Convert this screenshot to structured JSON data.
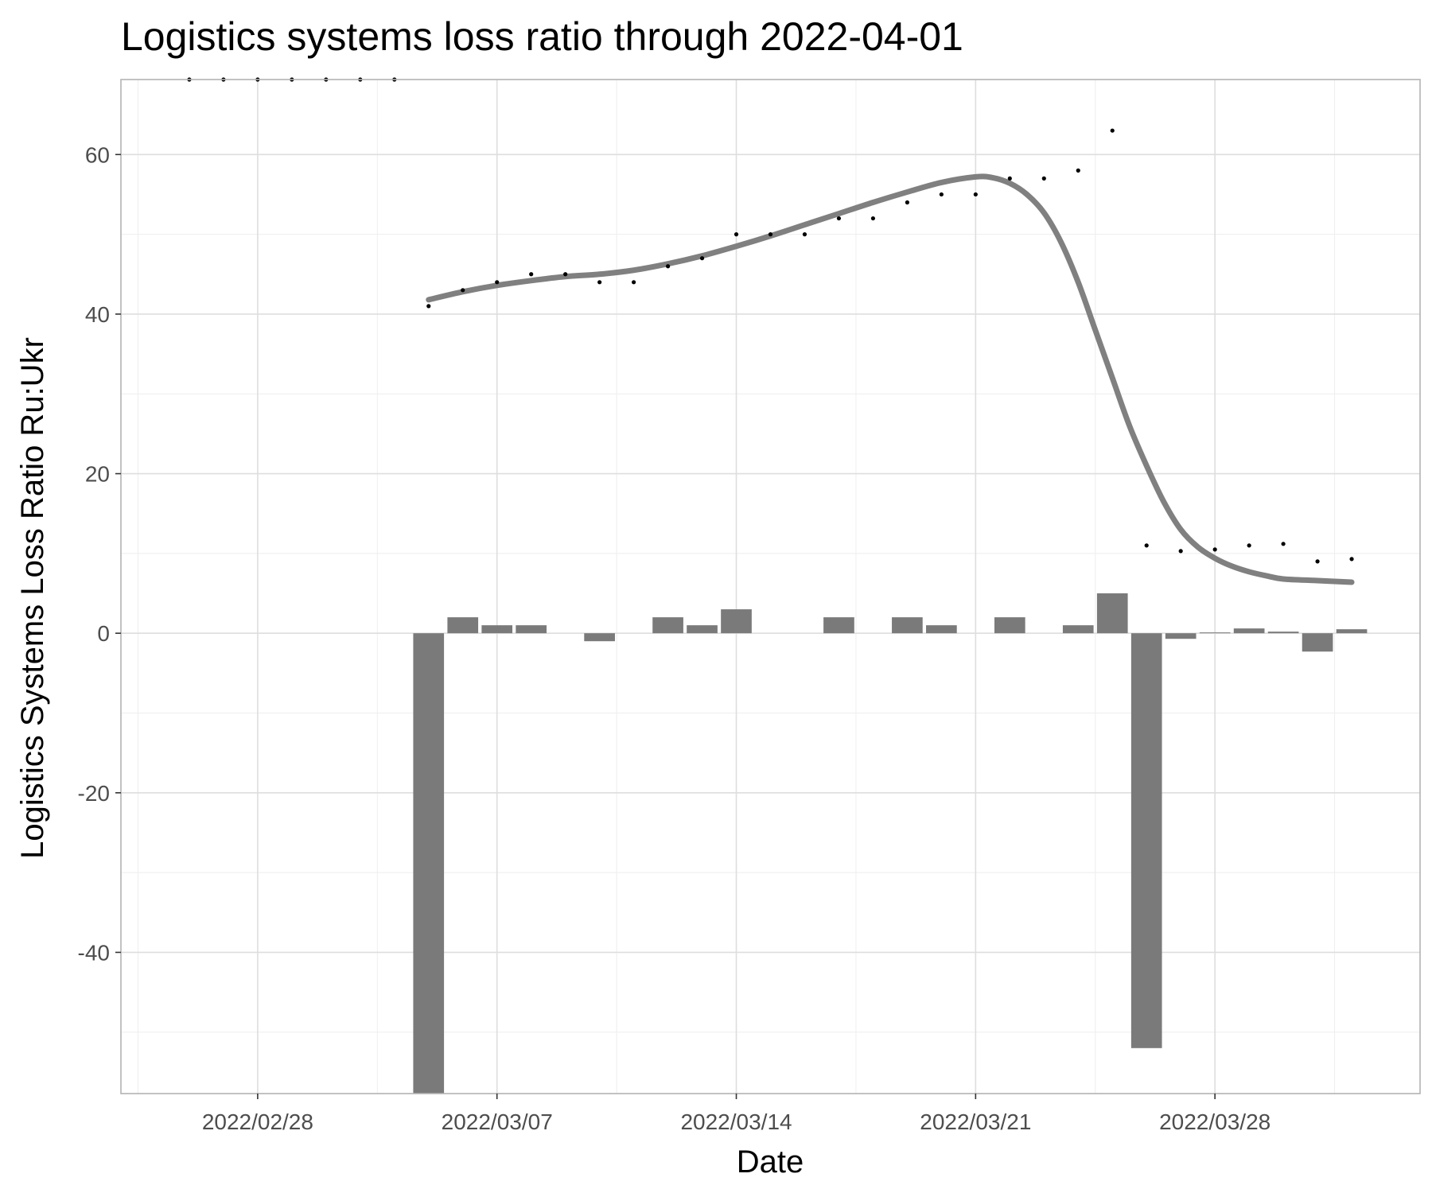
{
  "chart_data": {
    "type": "bar+scatter+line",
    "title": "Logistics systems loss ratio through 2022-04-01",
    "xlabel": "Date",
    "ylabel": "Logistics Systems Loss Ratio Ru:Ukr",
    "xlim": [
      "2022-02-24T00:00",
      "2022-04-03T00:00"
    ],
    "ylim": [
      -57.7,
      69.4
    ],
    "x_ticks": [
      {
        "date": "2022-02-28",
        "label": "2022/02/28"
      },
      {
        "date": "2022-03-07",
        "label": "2022/03/07"
      },
      {
        "date": "2022-03-14",
        "label": "2022/03/14"
      },
      {
        "date": "2022-03-21",
        "label": "2022/03/21"
      },
      {
        "date": "2022-03-28",
        "label": "2022/03/28"
      }
    ],
    "y_ticks": [
      -40,
      -20,
      0,
      20,
      40,
      60
    ],
    "grid": true,
    "colors": {
      "bars": "#7a7a7a",
      "points": "#000000",
      "smooth": "#808080"
    },
    "daily_change_bars": {
      "x": [
        "2022-03-05",
        "2022-03-06",
        "2022-03-07",
        "2022-03-08",
        "2022-03-10",
        "2022-03-12",
        "2022-03-13",
        "2022-03-14",
        "2022-03-17",
        "2022-03-19",
        "2022-03-20",
        "2022-03-22",
        "2022-03-24",
        "2022-03-25",
        "2022-03-26",
        "2022-03-27",
        "2022-03-28",
        "2022-03-29",
        "2022-03-30",
        "2022-03-31",
        "2022-04-01"
      ],
      "values": [
        -57.7,
        2,
        1,
        1,
        -1,
        2,
        1,
        3,
        2,
        2,
        1,
        2,
        1,
        5,
        -52,
        -0.7,
        0.1,
        0.6,
        0.2,
        -2.3,
        0.5
      ]
    },
    "ratio_points": {
      "x": [
        "2022-02-26",
        "2022-02-27",
        "2022-02-28",
        "2022-03-01",
        "2022-03-02",
        "2022-03-03",
        "2022-03-04",
        "2022-03-05",
        "2022-03-06",
        "2022-03-07",
        "2022-03-08",
        "2022-03-09",
        "2022-03-10",
        "2022-03-11",
        "2022-03-12",
        "2022-03-13",
        "2022-03-14",
        "2022-03-15",
        "2022-03-16",
        "2022-03-17",
        "2022-03-18",
        "2022-03-19",
        "2022-03-20",
        "2022-03-21",
        "2022-03-22",
        "2022-03-23",
        "2022-03-24",
        "2022-03-25",
        "2022-03-26",
        "2022-03-27",
        "2022-03-28",
        "2022-03-29",
        "2022-03-30",
        "2022-03-31",
        "2022-04-01"
      ],
      "values": [
        69.4,
        69.4,
        69.4,
        69.4,
        69.4,
        69.4,
        69.4,
        41,
        43,
        44,
        45,
        45,
        44,
        44,
        46,
        47,
        50,
        50,
        50,
        52,
        52,
        54,
        55,
        55,
        57,
        57,
        58,
        63,
        11,
        10.3,
        10.5,
        11,
        11.2,
        9,
        9.3
      ]
    },
    "smooth_line": {
      "x": [
        "2022-03-05",
        "2022-03-06",
        "2022-03-07",
        "2022-03-08",
        "2022-03-09",
        "2022-03-10",
        "2022-03-11",
        "2022-03-12",
        "2022-03-13",
        "2022-03-14",
        "2022-03-15",
        "2022-03-16",
        "2022-03-17",
        "2022-03-18",
        "2022-03-19",
        "2022-03-20",
        "2022-03-21",
        "2022-03-21T12:00",
        "2022-03-22",
        "2022-03-22T12:00",
        "2022-03-23",
        "2022-03-23T12:00",
        "2022-03-24",
        "2022-03-24T12:00",
        "2022-03-25",
        "2022-03-25T12:00",
        "2022-03-26",
        "2022-03-26T12:00",
        "2022-03-27",
        "2022-03-27T12:00",
        "2022-03-28",
        "2022-03-28T12:00",
        "2022-03-29",
        "2022-03-29T12:00",
        "2022-03-30",
        "2022-03-31",
        "2022-04-01"
      ],
      "values": [
        41.8,
        42.8,
        43.6,
        44.2,
        44.7,
        45.0,
        45.5,
        46.3,
        47.3,
        48.5,
        49.8,
        51.2,
        52.6,
        54.0,
        55.3,
        56.5,
        57.2,
        57.1,
        56.4,
        55.0,
        52.7,
        49.0,
        44.0,
        38.0,
        32.0,
        26.0,
        21.0,
        16.5,
        13.0,
        10.8,
        9.4,
        8.4,
        7.7,
        7.2,
        6.8,
        6.6,
        6.4
      ]
    }
  }
}
